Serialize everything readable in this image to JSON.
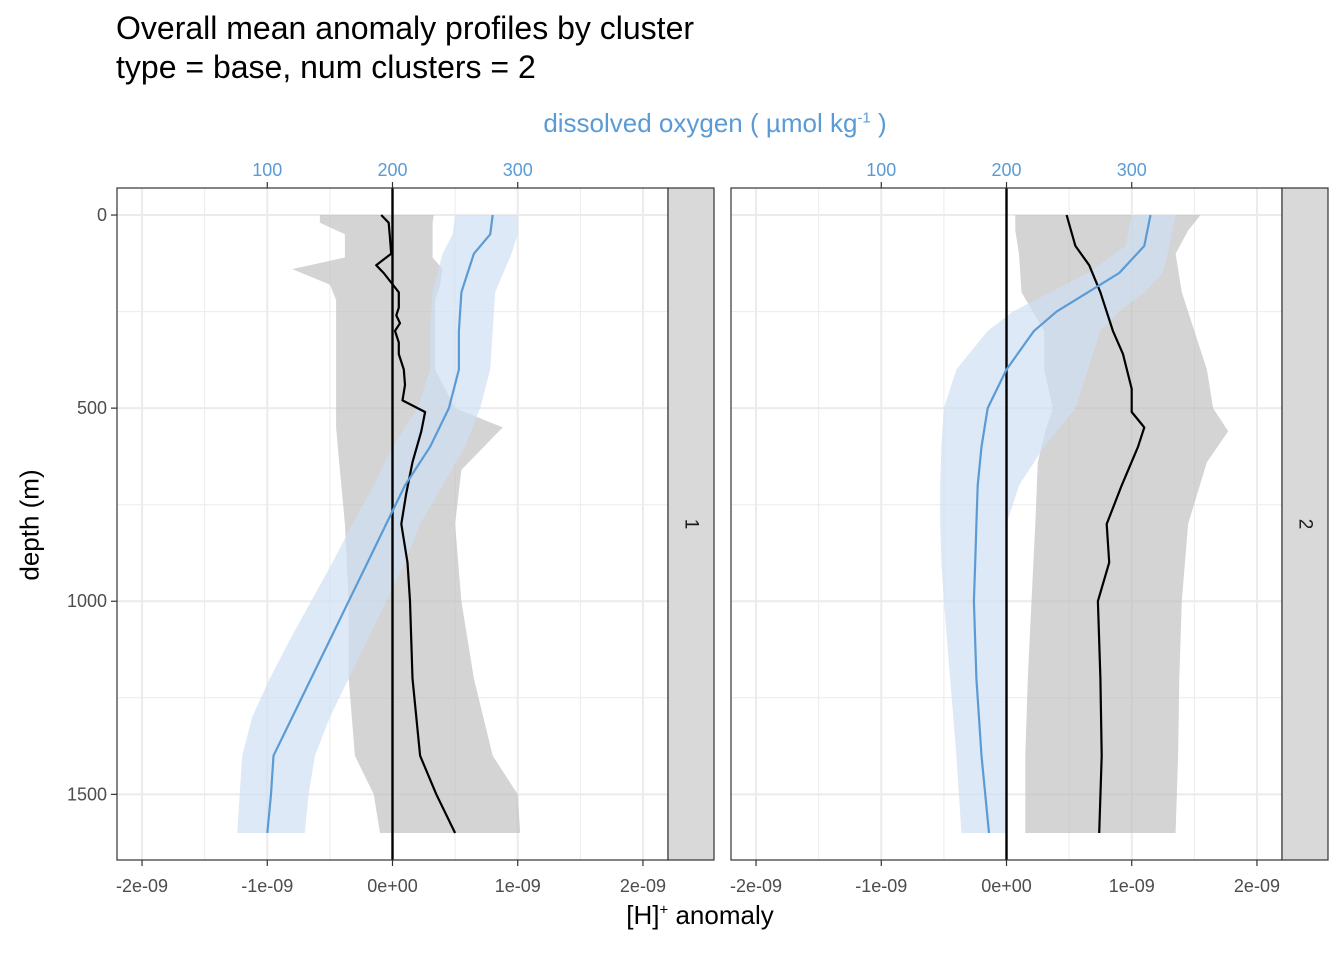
{
  "title_line1": "Overall mean anomaly profiles by cluster",
  "title_line2": "type = base, num clusters = 2",
  "colors": {
    "oxygen": "#5b9bd5",
    "oxygen_band": "#cfe0f4",
    "h_band": "#bdbdbd",
    "strip": "#d9d9d9",
    "grid": "#ebebeb"
  },
  "chart_data": {
    "type": "line",
    "title": "Overall mean anomaly profiles by cluster",
    "subtitle": "type = base, num clusters = 2",
    "xlabel_main": "[H]",
    "xlabel_sup": "+",
    "xlabel_rest": " anomaly",
    "ylabel": "depth (m)",
    "secondary_x_label_main": "dissolved oxygen ( µmol kg",
    "secondary_x_label_sup": "-1",
    "secondary_x_label_end": " )",
    "xlim": [
      -2.2e-09,
      2.2e-09
    ],
    "ylim": [
      -70,
      1670
    ],
    "oxygen_to_anomaly": {
      "offset": 200,
      "scale": 1e-11
    },
    "x_ticks": [
      -2e-09,
      -1e-09,
      0,
      1e-09,
      2e-09
    ],
    "x_tick_labels": [
      "-2e-09",
      "-1e-09",
      "0e+00",
      "1e-09",
      "2e-09"
    ],
    "y_ticks": [
      0,
      500,
      1000,
      1500
    ],
    "y_tick_labels": [
      "0",
      "500",
      "1000",
      "1500"
    ],
    "top_ticks": [
      100,
      200,
      300
    ],
    "top_tick_labels": [
      "100",
      "200",
      "300"
    ],
    "panels": [
      {
        "label": "1",
        "h_mean": [
          [
            0,
            -9e-11
          ],
          [
            20,
            -3e-11
          ],
          [
            60,
            -2e-11
          ],
          [
            100,
            -1e-11
          ],
          [
            130,
            -1.3e-10
          ],
          [
            150,
            -7e-11
          ],
          [
            200,
            5e-11
          ],
          [
            240,
            5e-11
          ],
          [
            260,
            3e-11
          ],
          [
            280,
            6e-11
          ],
          [
            300,
            2e-11
          ],
          [
            330,
            5e-11
          ],
          [
            360,
            5e-11
          ],
          [
            400,
            9e-11
          ],
          [
            440,
            1e-10
          ],
          [
            480,
            8e-11
          ],
          [
            510,
            2.6e-10
          ],
          [
            560,
            2.3e-10
          ],
          [
            640,
            1.6e-10
          ],
          [
            720,
            1.1e-10
          ],
          [
            800,
            7e-11
          ],
          [
            900,
            1.2e-10
          ],
          [
            1000,
            1.4e-10
          ],
          [
            1200,
            1.6e-10
          ],
          [
            1400,
            2.2e-10
          ],
          [
            1500,
            3.5e-10
          ],
          [
            1600,
            5e-10
          ]
        ],
        "h_band": [
          [
            0,
            -5.8e-10,
            3.3e-10
          ],
          [
            20,
            -5.8e-10,
            3.2e-10
          ],
          [
            50,
            -3.8e-10,
            3.2e-10
          ],
          [
            110,
            -3.8e-10,
            3.2e-10
          ],
          [
            140,
            -8e-10,
            4e-10
          ],
          [
            180,
            -5e-10,
            3.8e-10
          ],
          [
            220,
            -4.5e-10,
            3.4e-10
          ],
          [
            300,
            -4.5e-10,
            3.4e-10
          ],
          [
            400,
            -4.5e-10,
            3.4e-10
          ],
          [
            500,
            -4.5e-10,
            5e-10
          ],
          [
            550,
            -4.5e-10,
            8.8e-10
          ],
          [
            660,
            -4.2e-10,
            5.5e-10
          ],
          [
            800,
            -3.8e-10,
            5e-10
          ],
          [
            1000,
            -3.5e-10,
            5.5e-10
          ],
          [
            1200,
            -3.5e-10,
            6.5e-10
          ],
          [
            1400,
            -3e-10,
            8e-10
          ],
          [
            1500,
            -1.5e-10,
            1e-09
          ],
          [
            1600,
            -1e-10,
            1.02e-09
          ]
        ],
        "oxygen_mean": [
          [
            0,
            280
          ],
          [
            50,
            278
          ],
          [
            100,
            265
          ],
          [
            150,
            260
          ],
          [
            200,
            255
          ],
          [
            300,
            253
          ],
          [
            400,
            253
          ],
          [
            500,
            245
          ],
          [
            600,
            230
          ],
          [
            700,
            210
          ],
          [
            800,
            195
          ],
          [
            900,
            180
          ],
          [
            1000,
            165
          ],
          [
            1100,
            150
          ],
          [
            1200,
            135
          ],
          [
            1300,
            120
          ],
          [
            1400,
            105
          ],
          [
            1500,
            103
          ],
          [
            1600,
            100
          ]
        ],
        "oxygen_band": [
          [
            0,
            250,
            300
          ],
          [
            50,
            248,
            300
          ],
          [
            100,
            240,
            295
          ],
          [
            200,
            232,
            282
          ],
          [
            300,
            230,
            280
          ],
          [
            400,
            230,
            278
          ],
          [
            500,
            220,
            270
          ],
          [
            600,
            200,
            258
          ],
          [
            700,
            185,
            240
          ],
          [
            800,
            168,
            222
          ],
          [
            900,
            152,
            210
          ],
          [
            1000,
            135,
            195
          ],
          [
            1100,
            118,
            180
          ],
          [
            1200,
            102,
            165
          ],
          [
            1300,
            88,
            150
          ],
          [
            1400,
            80,
            138
          ],
          [
            1500,
            78,
            133
          ],
          [
            1600,
            76,
            130
          ]
        ]
      },
      {
        "label": "2",
        "h_mean": [
          [
            0,
            4.8e-10
          ],
          [
            80,
            5.5e-10
          ],
          [
            130,
            6.6e-10
          ],
          [
            200,
            7.5e-10
          ],
          [
            300,
            8.5e-10
          ],
          [
            360,
            9.3e-10
          ],
          [
            450,
            1e-09
          ],
          [
            510,
            1e-09
          ],
          [
            550,
            1.1e-09
          ],
          [
            600,
            1.05e-09
          ],
          [
            700,
            9.2e-10
          ],
          [
            800,
            8e-10
          ],
          [
            900,
            8.2e-10
          ],
          [
            1000,
            7.3e-10
          ],
          [
            1200,
            7.5e-10
          ],
          [
            1400,
            7.6e-10
          ],
          [
            1600,
            7.4e-10
          ]
        ],
        "h_band": [
          [
            0,
            7e-11,
            1.55e-09
          ],
          [
            40,
            7e-11,
            1.45e-09
          ],
          [
            100,
            1e-10,
            1.35e-09
          ],
          [
            200,
            1.2e-10,
            1.4e-09
          ],
          [
            300,
            3e-10,
            1.5e-09
          ],
          [
            400,
            3e-10,
            1.6e-09
          ],
          [
            500,
            3.7e-10,
            1.65e-09
          ],
          [
            560,
            3.1e-10,
            1.77e-09
          ],
          [
            640,
            2.5e-10,
            1.6e-09
          ],
          [
            800,
            2.3e-10,
            1.45e-09
          ],
          [
            1000,
            2e-10,
            1.4e-09
          ],
          [
            1200,
            1.7e-10,
            1.38e-09
          ],
          [
            1400,
            1.5e-10,
            1.37e-09
          ],
          [
            1600,
            1.5e-10,
            1.35e-09
          ]
        ],
        "oxygen_mean": [
          [
            0,
            315
          ],
          [
            80,
            310
          ],
          [
            150,
            290
          ],
          [
            200,
            265
          ],
          [
            250,
            240
          ],
          [
            300,
            222
          ],
          [
            400,
            200
          ],
          [
            500,
            185
          ],
          [
            600,
            180
          ],
          [
            700,
            177
          ],
          [
            800,
            176
          ],
          [
            900,
            175
          ],
          [
            1000,
            174
          ],
          [
            1200,
            176
          ],
          [
            1400,
            180
          ],
          [
            1600,
            186
          ]
        ],
        "oxygen_band": [
          [
            0,
            300,
            335
          ],
          [
            80,
            295,
            330
          ],
          [
            150,
            265,
            325
          ],
          [
            200,
            235,
            310
          ],
          [
            250,
            205,
            290
          ],
          [
            300,
            185,
            275
          ],
          [
            400,
            160,
            265
          ],
          [
            500,
            150,
            255
          ],
          [
            600,
            148,
            230
          ],
          [
            700,
            147,
            210
          ],
          [
            800,
            147,
            200
          ],
          [
            900,
            148,
            200
          ],
          [
            1000,
            150,
            200
          ],
          [
            1200,
            155,
            200
          ],
          [
            1400,
            160,
            200
          ],
          [
            1600,
            164,
            200
          ]
        ]
      }
    ]
  }
}
